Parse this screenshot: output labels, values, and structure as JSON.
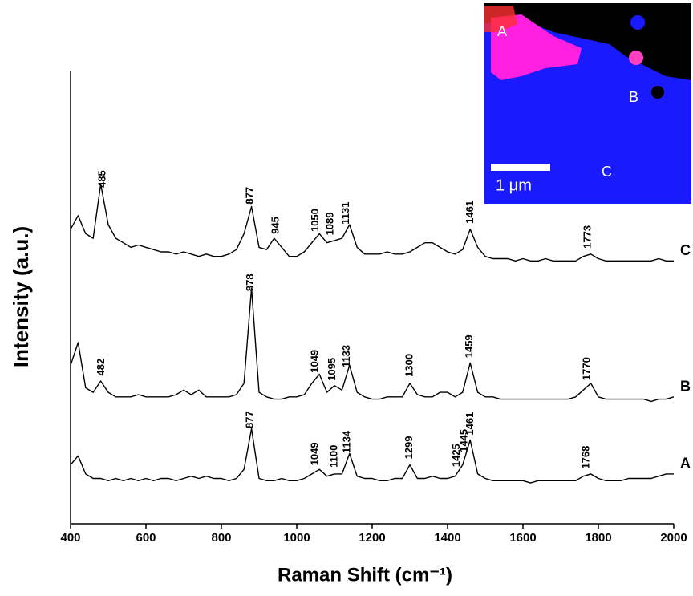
{
  "chart_data": {
    "type": "line",
    "x_label": "Raman Shift (cm⁻¹)",
    "y_label": "Intensity (a.u.)",
    "x": [
      400,
      420,
      440,
      460,
      480,
      500,
      520,
      540,
      560,
      580,
      600,
      620,
      640,
      660,
      680,
      700,
      720,
      740,
      760,
      780,
      800,
      820,
      840,
      860,
      880,
      900,
      920,
      940,
      960,
      980,
      1000,
      1020,
      1040,
      1060,
      1080,
      1100,
      1120,
      1140,
      1160,
      1180,
      1200,
      1220,
      1240,
      1260,
      1280,
      1300,
      1320,
      1340,
      1360,
      1380,
      1400,
      1420,
      1440,
      1460,
      1480,
      1500,
      1520,
      1540,
      1560,
      1580,
      1600,
      1620,
      1640,
      1660,
      1680,
      1700,
      1720,
      1740,
      1760,
      1780,
      1800,
      1820,
      1840,
      1860,
      1880,
      1900,
      1920,
      1940,
      1960,
      1980,
      2000
    ],
    "xlim": [
      400,
      2000
    ],
    "xticks": [
      400,
      600,
      800,
      1000,
      1200,
      1400,
      1600,
      1800,
      2000
    ],
    "ylim": [
      0,
      100
    ],
    "series": [
      {
        "name": "A",
        "color": "#000000",
        "values": [
          13,
          15,
          11,
          10,
          10,
          9.5,
          10,
          9.5,
          10,
          9.5,
          10,
          9.5,
          10,
          10,
          9.5,
          10,
          10.5,
          10,
          10.5,
          10,
          10,
          9.5,
          10,
          12,
          21,
          10,
          9.5,
          9.5,
          10,
          9.5,
          9.5,
          10,
          11,
          12,
          10.5,
          11,
          11,
          15.5,
          10.5,
          10,
          10,
          9.5,
          9.5,
          10,
          10,
          13,
          10,
          10,
          10.5,
          10,
          10,
          10.5,
          13,
          18.5,
          11,
          10,
          9.5,
          9.5,
          9.5,
          9.5,
          9.5,
          9,
          9.5,
          9.5,
          9.5,
          9.5,
          9.5,
          9.5,
          10.5,
          11,
          10,
          9.5,
          9.5,
          9.5,
          10,
          10,
          10,
          10,
          10.5,
          11,
          11
        ],
        "peak_labels": [
          877,
          1049,
          1100,
          1134,
          1299,
          1425,
          1445,
          1461,
          1768
        ]
      },
      {
        "name": "B",
        "color": "#000000",
        "values": [
          35,
          40,
          30,
          29,
          31.5,
          29,
          28,
          28,
          28,
          28.5,
          28,
          28,
          28,
          28,
          28.5,
          29.5,
          28.5,
          29.5,
          28,
          28,
          28,
          28,
          28.5,
          31,
          52,
          29,
          28,
          27.5,
          27.5,
          28,
          28,
          28.5,
          31,
          33,
          29,
          30.5,
          29.5,
          35,
          29,
          28,
          27.5,
          27.5,
          28,
          28,
          28,
          31,
          28.5,
          28,
          28,
          29,
          29,
          28,
          29,
          35.5,
          29,
          28,
          28,
          27.5,
          27.5,
          27.5,
          27.5,
          27.5,
          27.5,
          27.5,
          27.5,
          27.5,
          27.5,
          28,
          29.5,
          31,
          28,
          27.5,
          27.5,
          27.5,
          27.5,
          27.5,
          27.5,
          27,
          27.5,
          27.5,
          28
        ],
        "peak_labels": [
          482,
          878,
          1049,
          1095,
          1133,
          1300,
          1459,
          1770
        ]
      },
      {
        "name": "C",
        "color": "#000000",
        "values": [
          65,
          68,
          64,
          63,
          75,
          66,
          63,
          62,
          61,
          61.5,
          61,
          60.5,
          60,
          60,
          59.5,
          60,
          59.5,
          59,
          59.5,
          59,
          59,
          59.5,
          60.5,
          64,
          70,
          61,
          60.5,
          63,
          61,
          59,
          59,
          60,
          62,
          64,
          62,
          62.5,
          63,
          66,
          61,
          59.5,
          59.5,
          59.5,
          60,
          59.5,
          59.5,
          60,
          61,
          62,
          62,
          61,
          60,
          59.5,
          60.5,
          65,
          61,
          59,
          58.5,
          58.5,
          58.5,
          58,
          58.5,
          58,
          58,
          58.5,
          58,
          58,
          58,
          58,
          59,
          59.5,
          58.5,
          58,
          58,
          58,
          58,
          58,
          58,
          58,
          58.5,
          58,
          58
        ],
        "peak_labels": [
          485,
          877,
          945,
          1050,
          1089,
          1131,
          1461,
          1773
        ]
      }
    ],
    "inset": {
      "scale_label": "1 μm"
    }
  }
}
